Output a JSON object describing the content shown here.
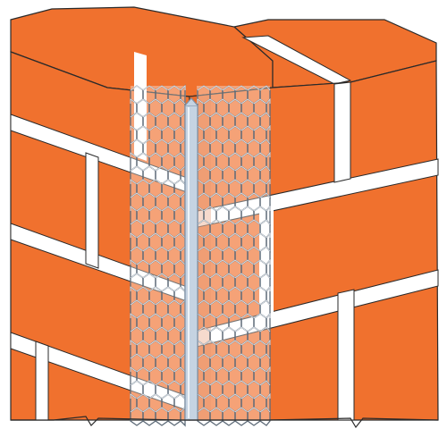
{
  "figure": {
    "subject": "brick-wall-corner-with-expanded-metal-angle-bead",
    "colors": {
      "background": "#ffffff",
      "brick": "#f0712e",
      "brick_shadow": "#d95f22",
      "mortar": "#ffffff",
      "outline": "#2a2a2a",
      "bead_nose": "#c5d3e2",
      "bead_nose_edge": "#7f93a8",
      "mesh": "#9aa7b4",
      "mesh_dark": "#5e6b78"
    },
    "icons": [
      "brick-course",
      "angle-bead",
      "expanded-metal-mesh"
    ]
  }
}
